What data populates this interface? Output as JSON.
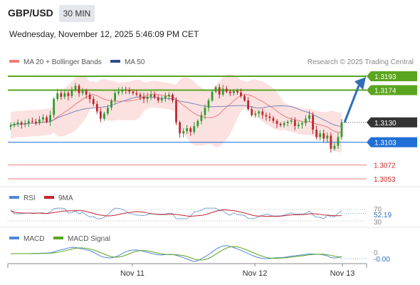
{
  "header": {
    "symbol": "GBP/USD",
    "timeframe": "30 MIN",
    "datetime": "Wednesday, November 12, 2025 5:46:09 PM CET"
  },
  "legend": {
    "bollinger_label": "MA 20 + Bollinger Bands",
    "bollinger_color": "#f07c7c",
    "ma50_label": "MA 50",
    "ma50_color": "#2a4f8c"
  },
  "credit": "Research © 2025 Trading Central",
  "chart_data": [
    {
      "type": "candlestick",
      "panel": "price",
      "ylim": [
        1.304,
        1.32
      ],
      "x_ticks": [
        "Nov 11",
        "Nov 12",
        "Nov 13"
      ],
      "candle_up_color": "#2f9b2f",
      "candle_down_color": "#c0262c",
      "close_series": [
        1.3126,
        1.3128,
        1.313,
        1.3127,
        1.3129,
        1.3132,
        1.3131,
        1.3129,
        1.3134,
        1.3137,
        1.3131,
        1.314,
        1.3162,
        1.317,
        1.3165,
        1.317,
        1.3166,
        1.3175,
        1.318,
        1.317,
        1.3174,
        1.3168,
        1.3162,
        1.3155,
        1.3145,
        1.3135,
        1.3142,
        1.315,
        1.316,
        1.317,
        1.3172,
        1.3175,
        1.3174,
        1.3172,
        1.317,
        1.3168,
        1.3165,
        1.3162,
        1.3165,
        1.3168,
        1.3164,
        1.316,
        1.3163,
        1.3166,
        1.3168,
        1.316,
        1.313,
        1.3115,
        1.3118,
        1.3122,
        1.3117,
        1.3125,
        1.3132,
        1.314,
        1.315,
        1.316,
        1.3172,
        1.3178,
        1.3168,
        1.3176,
        1.3172,
        1.317,
        1.3173,
        1.3171,
        1.3166,
        1.316,
        1.3148,
        1.314,
        1.3142,
        1.3145,
        1.314,
        1.3138,
        1.3136,
        1.3132,
        1.3128,
        1.3126,
        1.3129,
        1.3131,
        1.3133,
        1.3125,
        1.3127,
        1.3129,
        1.3135,
        1.314,
        1.312,
        1.311,
        1.3115,
        1.3108,
        1.3112,
        1.3094,
        1.3098,
        1.311,
        1.313
      ],
      "levels": [
        {
          "value": "1.3193",
          "style": "resistance",
          "color": "#5aa51f"
        },
        {
          "value": "1.3174",
          "style": "resistance",
          "color": "#5aa51f"
        },
        {
          "value": "1.3130",
          "style": "last",
          "color": "#333333"
        },
        {
          "value": "1.3103",
          "style": "pivot",
          "color": "#1f6fd6"
        },
        {
          "value": "1.3072",
          "style": "support",
          "color": "#cc2a2a"
        },
        {
          "value": "1.3053",
          "style": "support",
          "color": "#cc2a2a"
        }
      ],
      "arrow_color": "#2f6fb7"
    },
    {
      "type": "line",
      "panel": "rsi",
      "legend": [
        {
          "name": "RSI",
          "color": "#4f86d9"
        },
        {
          "name": "9MA",
          "color": "#c0262c"
        }
      ],
      "y_ticks": [
        "70",
        "30"
      ],
      "current_value": "52.19",
      "ylim": [
        0,
        100
      ]
    },
    {
      "type": "line",
      "panel": "macd",
      "legend": [
        {
          "name": "MACD",
          "color": "#4f86d9"
        },
        {
          "name": "MACD Signal",
          "color": "#5aa51f"
        }
      ],
      "y_ticks": [
        "0"
      ],
      "current_value": "-0.00"
    }
  ]
}
